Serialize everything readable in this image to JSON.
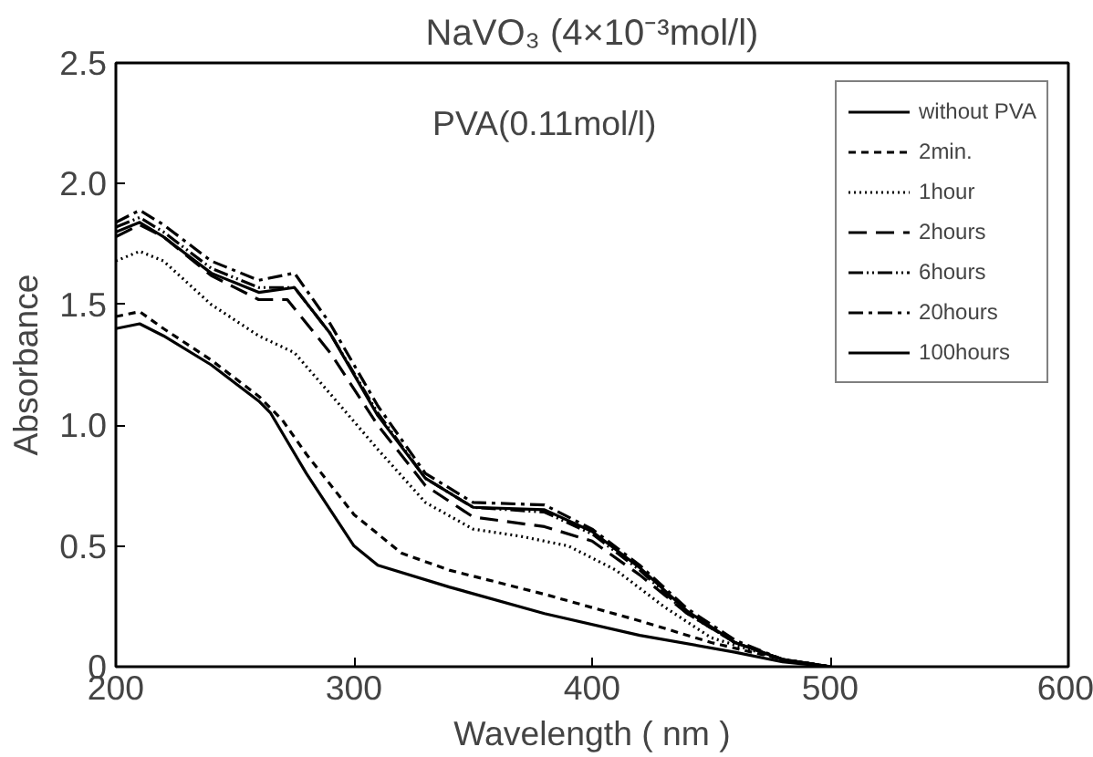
{
  "chart_data": {
    "type": "line",
    "title": "NaVO₃ (4×10⁻³mol/l)",
    "annotations": [
      "PVA(0.11mol/l)"
    ],
    "xlabel": "Wavelength ( nm )",
    "ylabel": "Absorbance",
    "xlim": [
      200,
      600
    ],
    "ylim": [
      0,
      2.5
    ],
    "xticks": [
      200,
      300,
      400,
      500,
      600
    ],
    "yticks": [
      0,
      {
        "value": 0.5,
        "label": "0.5"
      },
      {
        "value": 1,
        "label": "1.0"
      },
      {
        "value": 1.5,
        "label": "1.5"
      },
      {
        "value": 2,
        "label": "2.0"
      },
      {
        "value": 2.5,
        "label": "2.5"
      }
    ],
    "grid": false,
    "legend": "top right",
    "marker": "none",
    "series": [
      {
        "name": "without PVA",
        "color": "#000000",
        "line_style": "solid",
        "x": [
          200,
          210,
          220,
          240,
          260,
          265,
          280,
          300,
          310,
          340,
          380,
          420,
          460,
          480,
          500
        ],
        "values": [
          1.4,
          1.42,
          1.37,
          1.25,
          1.1,
          1.05,
          0.8,
          0.5,
          0.42,
          0.33,
          0.22,
          0.13,
          0.06,
          0.02,
          0
        ]
      },
      {
        "name": "2min.",
        "color": "#000000",
        "line_style": "dashed",
        "x": [
          200,
          210,
          220,
          240,
          260,
          270,
          280,
          300,
          320,
          340,
          380,
          420,
          450,
          480,
          500
        ],
        "values": [
          1.45,
          1.47,
          1.4,
          1.27,
          1.12,
          1.02,
          0.88,
          0.63,
          0.47,
          0.4,
          0.3,
          0.19,
          0.1,
          0.03,
          0
        ]
      },
      {
        "name": "1hour",
        "color": "#000000",
        "line_style": "dotted",
        "x": [
          200,
          210,
          220,
          240,
          260,
          275,
          290,
          310,
          330,
          350,
          370,
          390,
          410,
          430,
          450,
          480,
          500
        ],
        "values": [
          1.68,
          1.72,
          1.68,
          1.5,
          1.37,
          1.3,
          1.13,
          0.9,
          0.68,
          0.57,
          0.54,
          0.5,
          0.4,
          0.25,
          0.12,
          0.03,
          0
        ]
      },
      {
        "name": "2hours",
        "color": "#000000",
        "line_style": "longdash",
        "x": [
          200,
          210,
          220,
          240,
          260,
          272,
          290,
          310,
          330,
          350,
          380,
          400,
          420,
          440,
          460,
          480,
          500
        ],
        "values": [
          1.78,
          1.83,
          1.78,
          1.62,
          1.52,
          1.52,
          1.3,
          1.0,
          0.75,
          0.62,
          0.58,
          0.52,
          0.38,
          0.22,
          0.1,
          0.03,
          0
        ]
      },
      {
        "name": "6hours",
        "color": "#000000",
        "line_style": "dashdotdot",
        "x": [
          200,
          210,
          220,
          240,
          260,
          275,
          290,
          310,
          330,
          350,
          380,
          400,
          420,
          440,
          460,
          480,
          500
        ],
        "values": [
          1.82,
          1.86,
          1.8,
          1.65,
          1.57,
          1.57,
          1.38,
          1.05,
          0.78,
          0.66,
          0.64,
          0.55,
          0.4,
          0.22,
          0.1,
          0.03,
          0
        ]
      },
      {
        "name": "20hours",
        "color": "#000000",
        "line_style": "dashdot",
        "x": [
          200,
          210,
          220,
          240,
          260,
          275,
          290,
          310,
          330,
          350,
          380,
          400,
          420,
          440,
          460,
          480,
          500
        ],
        "values": [
          1.84,
          1.89,
          1.83,
          1.68,
          1.6,
          1.63,
          1.42,
          1.08,
          0.8,
          0.68,
          0.67,
          0.57,
          0.42,
          0.24,
          0.11,
          0.03,
          0
        ]
      },
      {
        "name": "100hours",
        "color": "#000000",
        "line_style": "solid",
        "x": [
          200,
          210,
          220,
          240,
          260,
          275,
          290,
          310,
          330,
          350,
          380,
          400,
          420,
          440,
          460,
          480,
          500
        ],
        "values": [
          1.8,
          1.84,
          1.78,
          1.63,
          1.55,
          1.57,
          1.38,
          1.04,
          0.78,
          0.66,
          0.65,
          0.56,
          0.41,
          0.23,
          0.1,
          0.03,
          0
        ]
      }
    ]
  }
}
